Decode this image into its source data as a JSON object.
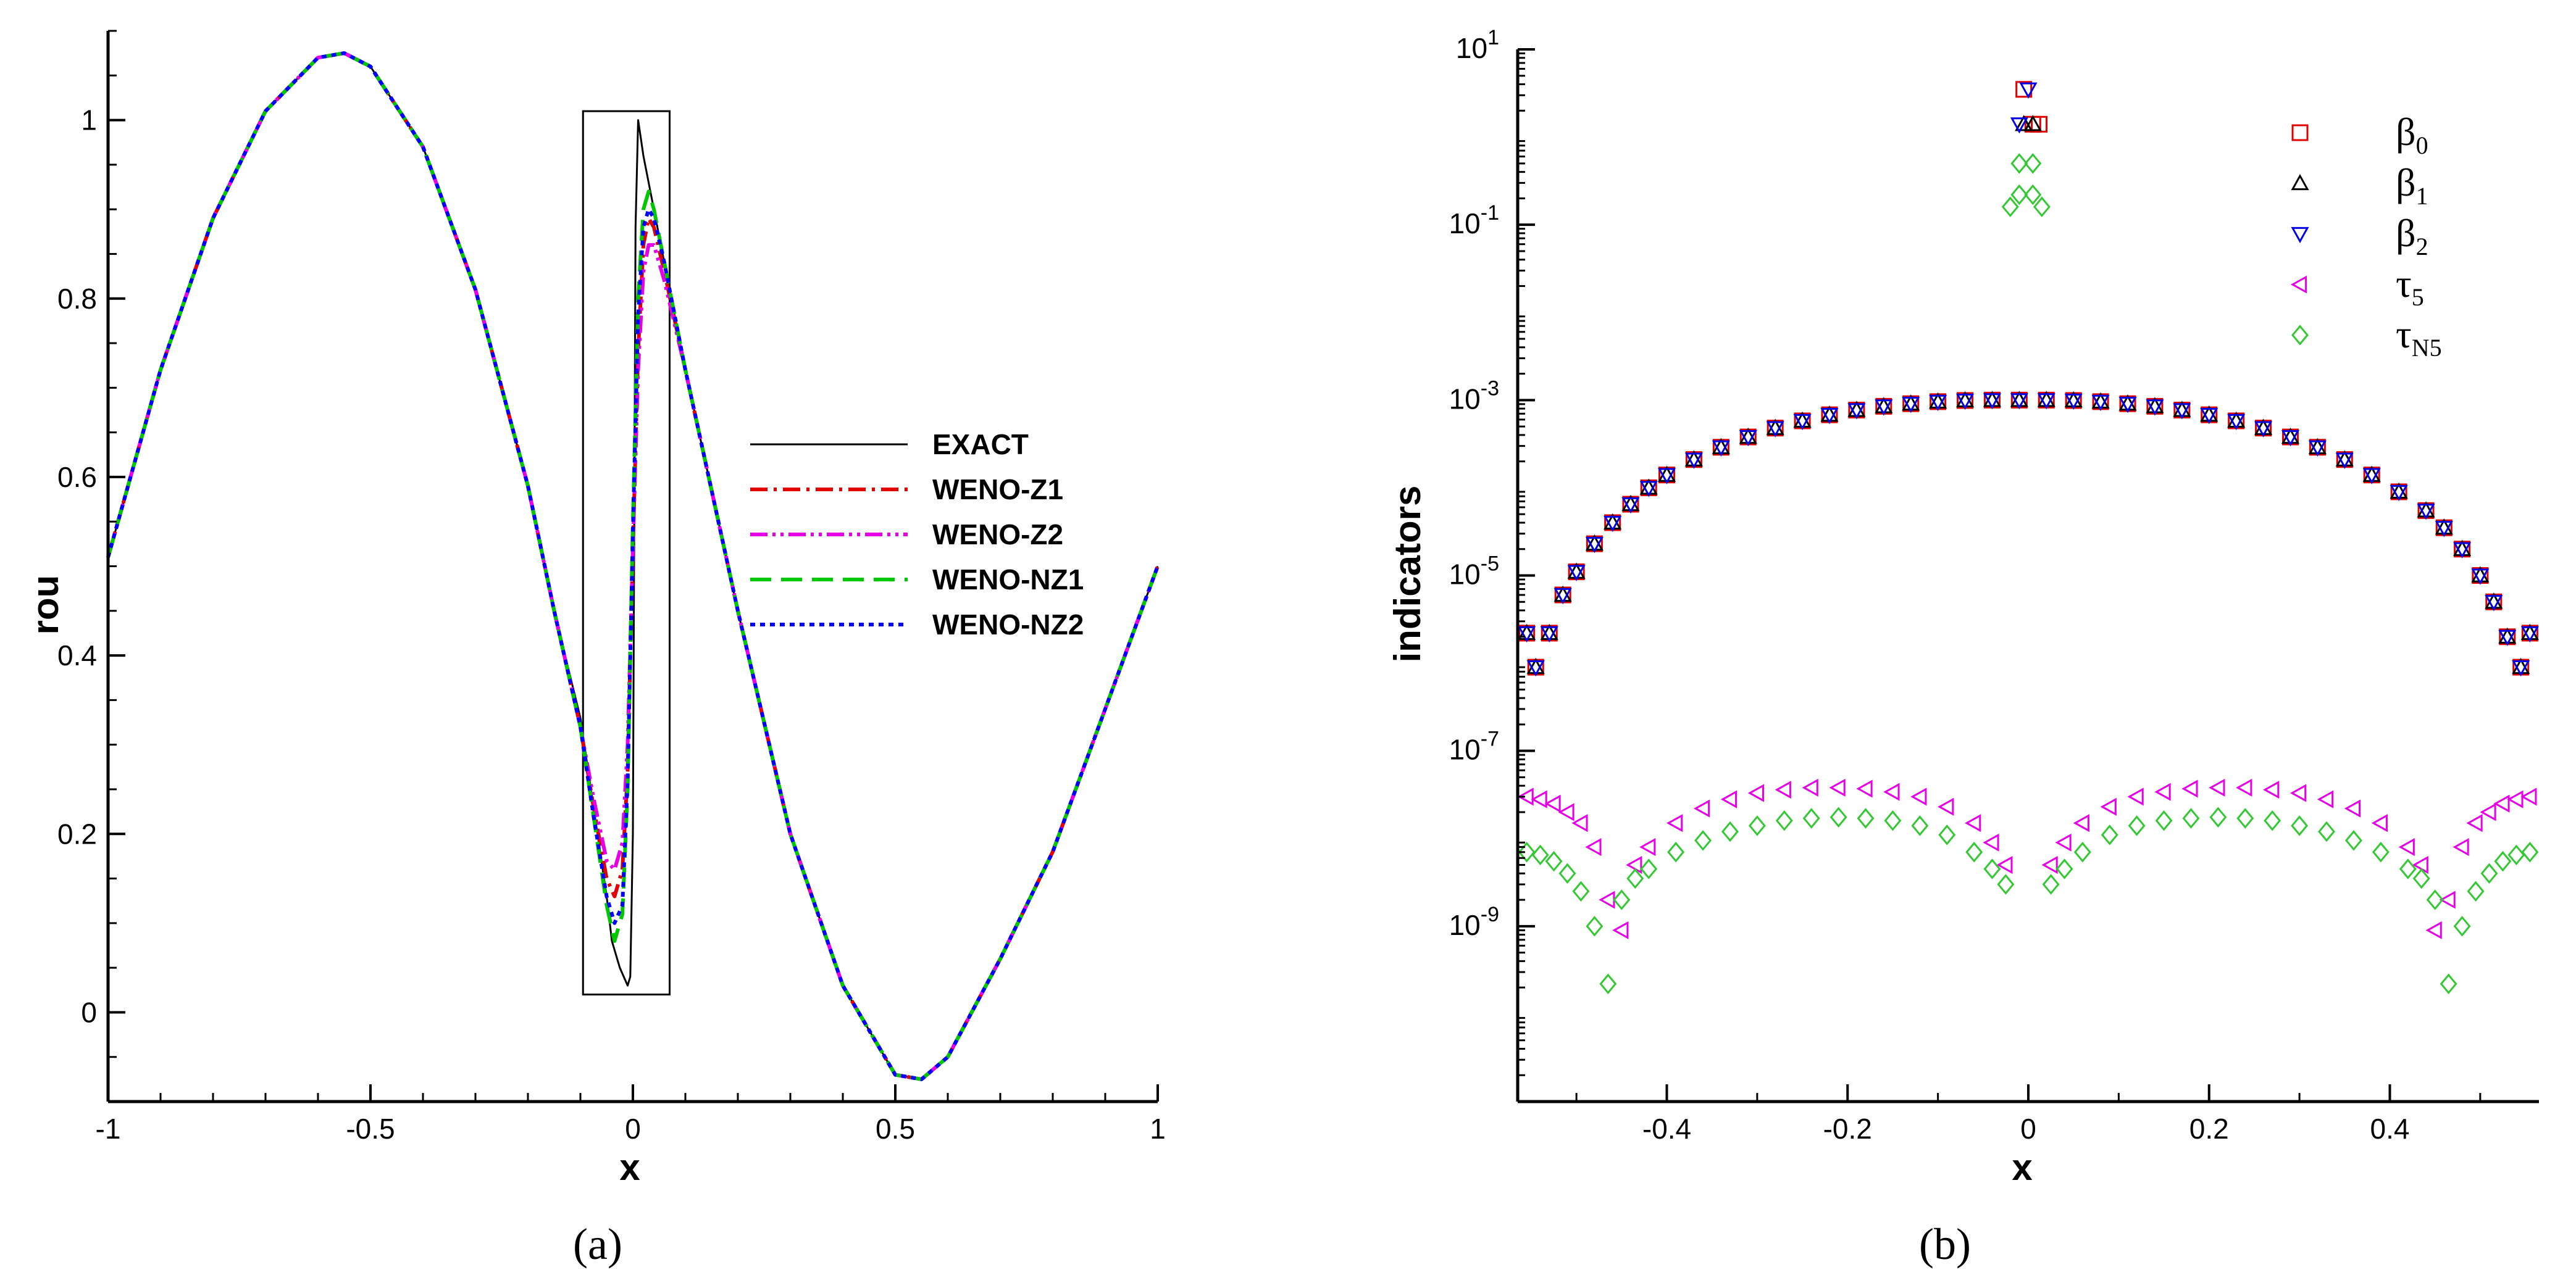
{
  "chart_data": [
    {
      "id": "a",
      "type": "line",
      "panel_label": "(a)",
      "xlabel": "x",
      "ylabel": "rou",
      "xlim": [
        -1,
        1
      ],
      "ylim": [
        -0.1,
        1.1
      ],
      "xticks": [
        -1,
        -0.5,
        0,
        0.5,
        1
      ],
      "xtick_labels": [
        "-1",
        "-0.5",
        "0",
        "0.5",
        "1"
      ],
      "yticks": [
        0,
        0.2,
        0.4,
        0.6,
        0.8,
        1
      ],
      "ytick_labels": [
        "0",
        "0.2",
        "0.4",
        "0.6",
        "0.8",
        "1"
      ],
      "legend_position": "right",
      "highlight_box": {
        "x_range": [
          -0.095,
          0.07
        ],
        "y_range": [
          0.02,
          1.01
        ]
      },
      "series": [
        {
          "name": "EXACT",
          "color": "#000000",
          "dash": "solid",
          "x": [
            -1,
            -0.9,
            -0.8,
            -0.7,
            -0.6,
            -0.55,
            -0.5,
            -0.4,
            -0.3,
            -0.2,
            -0.15,
            -0.1,
            -0.075,
            -0.05,
            -0.04,
            -0.025,
            -0.01,
            -0.005,
            0.0,
            0.005,
            0.01,
            0.015,
            0.02,
            0.04,
            0.06,
            0.1,
            0.2,
            0.3,
            0.4,
            0.5,
            0.55,
            0.6,
            0.7,
            0.8,
            0.9,
            1.0
          ],
          "y": [
            0.51,
            0.72,
            0.89,
            1.01,
            1.07,
            1.075,
            1.06,
            0.97,
            0.81,
            0.59,
            0.45,
            0.33,
            0.23,
            0.13,
            0.08,
            0.05,
            0.03,
            0.04,
            0.2,
            0.88,
            1.0,
            0.98,
            0.96,
            0.9,
            0.84,
            0.72,
            0.45,
            0.2,
            0.03,
            -0.07,
            -0.075,
            -0.05,
            0.06,
            0.18,
            0.34,
            0.5
          ]
        },
        {
          "name": "WENO-Z1",
          "color": "#e30000",
          "dash": "dashdot",
          "x": [
            -1,
            -0.9,
            -0.8,
            -0.7,
            -0.6,
            -0.55,
            -0.5,
            -0.4,
            -0.3,
            -0.2,
            -0.15,
            -0.1,
            -0.075,
            -0.05,
            -0.035,
            -0.02,
            -0.01,
            0.0,
            0.01,
            0.02,
            0.03,
            0.04,
            0.06,
            0.1,
            0.2,
            0.3,
            0.4,
            0.5,
            0.55,
            0.6,
            0.7,
            0.8,
            0.9,
            1.0
          ],
          "y": [
            0.51,
            0.72,
            0.89,
            1.01,
            1.07,
            1.075,
            1.06,
            0.97,
            0.81,
            0.59,
            0.45,
            0.32,
            0.23,
            0.15,
            0.13,
            0.16,
            0.27,
            0.52,
            0.74,
            0.86,
            0.89,
            0.88,
            0.83,
            0.72,
            0.45,
            0.2,
            0.03,
            -0.07,
            -0.075,
            -0.05,
            0.06,
            0.18,
            0.34,
            0.5
          ]
        },
        {
          "name": "WENO-Z2",
          "color": "#e600e6",
          "dash": "dashdotdot",
          "x": [
            -1,
            -0.9,
            -0.8,
            -0.7,
            -0.6,
            -0.55,
            -0.5,
            -0.4,
            -0.3,
            -0.2,
            -0.15,
            -0.1,
            -0.075,
            -0.05,
            -0.035,
            -0.02,
            -0.01,
            0.0,
            0.01,
            0.02,
            0.03,
            0.04,
            0.06,
            0.1,
            0.2,
            0.3,
            0.4,
            0.5,
            0.55,
            0.6,
            0.7,
            0.8,
            0.9,
            1.0
          ],
          "y": [
            0.51,
            0.72,
            0.89,
            1.01,
            1.07,
            1.075,
            1.06,
            0.97,
            0.81,
            0.59,
            0.45,
            0.32,
            0.24,
            0.17,
            0.16,
            0.19,
            0.3,
            0.52,
            0.72,
            0.83,
            0.86,
            0.86,
            0.82,
            0.72,
            0.45,
            0.2,
            0.03,
            -0.07,
            -0.075,
            -0.05,
            0.06,
            0.18,
            0.34,
            0.5
          ]
        },
        {
          "name": "WENO-NZ1",
          "color": "#00c800",
          "dash": "longdash",
          "x": [
            -1,
            -0.9,
            -0.8,
            -0.7,
            -0.6,
            -0.55,
            -0.5,
            -0.4,
            -0.3,
            -0.2,
            -0.15,
            -0.1,
            -0.075,
            -0.05,
            -0.035,
            -0.02,
            -0.01,
            0.0,
            0.01,
            0.02,
            0.03,
            0.04,
            0.06,
            0.1,
            0.2,
            0.3,
            0.4,
            0.5,
            0.55,
            0.6,
            0.7,
            0.8,
            0.9,
            1.0
          ],
          "y": [
            0.51,
            0.72,
            0.89,
            1.01,
            1.07,
            1.075,
            1.06,
            0.97,
            0.81,
            0.59,
            0.45,
            0.32,
            0.22,
            0.12,
            0.08,
            0.11,
            0.25,
            0.55,
            0.8,
            0.9,
            0.92,
            0.9,
            0.84,
            0.72,
            0.45,
            0.2,
            0.03,
            -0.07,
            -0.075,
            -0.05,
            0.06,
            0.18,
            0.34,
            0.5
          ]
        },
        {
          "name": "WENO-NZ2",
          "color": "#0000ff",
          "dash": "dot",
          "x": [
            -1,
            -0.9,
            -0.8,
            -0.7,
            -0.6,
            -0.55,
            -0.5,
            -0.4,
            -0.3,
            -0.2,
            -0.15,
            -0.1,
            -0.075,
            -0.05,
            -0.035,
            -0.02,
            -0.01,
            0.0,
            0.01,
            0.02,
            0.03,
            0.04,
            0.06,
            0.1,
            0.2,
            0.3,
            0.4,
            0.5,
            0.55,
            0.6,
            0.7,
            0.8,
            0.9,
            1.0
          ],
          "y": [
            0.51,
            0.72,
            0.89,
            1.01,
            1.07,
            1.075,
            1.06,
            0.97,
            0.81,
            0.59,
            0.45,
            0.32,
            0.22,
            0.13,
            0.1,
            0.12,
            0.26,
            0.54,
            0.78,
            0.88,
            0.9,
            0.89,
            0.84,
            0.72,
            0.45,
            0.2,
            0.03,
            -0.07,
            -0.075,
            -0.05,
            0.06,
            0.18,
            0.34,
            0.5
          ]
        }
      ]
    },
    {
      "id": "b",
      "type": "scatter",
      "panel_label": "(b)",
      "xlabel": "x",
      "ylabel": "indicators",
      "yscale": "log",
      "xlim": [
        -0.565,
        0.565
      ],
      "ylim_exponent": [
        -11,
        1
      ],
      "xticks": [
        -0.4,
        -0.2,
        0,
        0.2,
        0.4
      ],
      "xtick_labels": [
        "-0.4",
        "-0.2",
        "0",
        "0.2",
        "0.4"
      ],
      "ytick_exponents": [
        -9,
        -7,
        -5,
        -3,
        -1,
        1
      ],
      "ytick_base": "10",
      "ytick_exponent_labels": [
        "-9",
        "-7",
        "-5",
        "-3",
        "-1",
        "1"
      ],
      "legend_position": "top-right",
      "series": [
        {
          "name": "β",
          "sub": "0",
          "marker": "square",
          "color": "#e00000",
          "x": [
            -0.555,
            -0.545,
            -0.53,
            -0.515,
            -0.5,
            -0.48,
            -0.46,
            -0.44,
            -0.42,
            -0.4,
            -0.37,
            -0.34,
            -0.31,
            -0.28,
            -0.25,
            -0.22,
            -0.19,
            -0.16,
            -0.13,
            -0.1,
            -0.07,
            -0.04,
            -0.01,
            0.02,
            0.05,
            0.08,
            0.11,
            0.14,
            0.17,
            0.2,
            0.23,
            0.26,
            0.29,
            0.32,
            0.35,
            0.38,
            0.41,
            0.44,
            0.46,
            0.48,
            0.5,
            0.515,
            0.53,
            0.545,
            0.555,
            -0.005,
            0.005,
            0.012
          ],
          "y": [
            2.2e-06,
            9e-07,
            2.2e-06,
            6e-06,
            1.1e-05,
            2.3e-05,
            4e-05,
            6.5e-05,
            0.0001,
            0.00014,
            0.00021,
            0.00029,
            0.00038,
            0.00048,
            0.00058,
            0.00068,
            0.00077,
            0.00085,
            0.00091,
            0.00096,
            0.00099,
            0.001,
            0.001,
            0.001,
            0.00099,
            0.00096,
            0.00091,
            0.00085,
            0.00077,
            0.00068,
            0.00058,
            0.00048,
            0.00038,
            0.00029,
            0.00021,
            0.00014,
            9e-05,
            5.5e-05,
            3.5e-05,
            2e-05,
            1e-05,
            5e-06,
            2e-06,
            9e-07,
            2.2e-06,
            3.5,
            1.4,
            1.4
          ]
        },
        {
          "name": "β",
          "sub": "1",
          "marker": "triangle-up",
          "color": "#000000",
          "x": [
            -0.555,
            -0.545,
            -0.53,
            -0.515,
            -0.5,
            -0.48,
            -0.46,
            -0.44,
            -0.42,
            -0.4,
            -0.37,
            -0.34,
            -0.31,
            -0.28,
            -0.25,
            -0.22,
            -0.19,
            -0.16,
            -0.13,
            -0.1,
            -0.07,
            -0.04,
            -0.01,
            0.02,
            0.05,
            0.08,
            0.11,
            0.14,
            0.17,
            0.2,
            0.23,
            0.26,
            0.29,
            0.32,
            0.35,
            0.38,
            0.41,
            0.44,
            0.46,
            0.48,
            0.5,
            0.515,
            0.53,
            0.545,
            0.555,
            -0.005,
            0.005
          ],
          "y": [
            2.2e-06,
            9e-07,
            2.2e-06,
            6e-06,
            1.1e-05,
            2.3e-05,
            4e-05,
            6.5e-05,
            0.0001,
            0.00014,
            0.00021,
            0.00029,
            0.00038,
            0.00048,
            0.00058,
            0.00068,
            0.00077,
            0.00085,
            0.00091,
            0.00096,
            0.00099,
            0.001,
            0.001,
            0.001,
            0.00099,
            0.00096,
            0.00091,
            0.00085,
            0.00077,
            0.00068,
            0.00058,
            0.00048,
            0.00038,
            0.00029,
            0.00021,
            0.00014,
            9e-05,
            5.5e-05,
            3.5e-05,
            2e-05,
            1e-05,
            5e-06,
            2e-06,
            9e-07,
            2.2e-06,
            1.4,
            1.4
          ]
        },
        {
          "name": "β",
          "sub": "2",
          "marker": "triangle-down",
          "color": "#0000e6",
          "x": [
            -0.555,
            -0.545,
            -0.53,
            -0.515,
            -0.5,
            -0.48,
            -0.46,
            -0.44,
            -0.42,
            -0.4,
            -0.37,
            -0.34,
            -0.31,
            -0.28,
            -0.25,
            -0.22,
            -0.19,
            -0.16,
            -0.13,
            -0.1,
            -0.07,
            -0.04,
            -0.01,
            0.02,
            0.05,
            0.08,
            0.11,
            0.14,
            0.17,
            0.2,
            0.23,
            0.26,
            0.29,
            0.32,
            0.35,
            0.38,
            0.41,
            0.44,
            0.46,
            0.48,
            0.5,
            0.515,
            0.53,
            0.545,
            0.555,
            -0.01,
            0.0
          ],
          "y": [
            2.2e-06,
            9e-07,
            2.2e-06,
            6e-06,
            1.1e-05,
            2.3e-05,
            4e-05,
            6.5e-05,
            0.0001,
            0.00014,
            0.00021,
            0.00029,
            0.00038,
            0.00048,
            0.00058,
            0.00068,
            0.00077,
            0.00085,
            0.00091,
            0.00096,
            0.00099,
            0.001,
            0.001,
            0.001,
            0.00099,
            0.00096,
            0.00091,
            0.00085,
            0.00077,
            0.00068,
            0.00058,
            0.00048,
            0.00038,
            0.00029,
            0.00021,
            0.00014,
            9e-05,
            5.5e-05,
            3.5e-05,
            2e-05,
            1e-05,
            5e-06,
            2e-06,
            9e-07,
            2.2e-06,
            1.4,
            3.5
          ]
        },
        {
          "name": "τ",
          "sub": "5",
          "marker": "triangle-left",
          "color": "#e600e6",
          "x": [
            -0.555,
            -0.54,
            -0.525,
            -0.51,
            -0.495,
            -0.48,
            -0.465,
            -0.45,
            -0.435,
            -0.42,
            -0.39,
            -0.36,
            -0.33,
            -0.3,
            -0.27,
            -0.24,
            -0.21,
            -0.18,
            -0.15,
            -0.12,
            -0.09,
            -0.06,
            -0.04,
            -0.025,
            0.025,
            0.04,
            0.06,
            0.09,
            0.12,
            0.15,
            0.18,
            0.21,
            0.24,
            0.27,
            0.3,
            0.33,
            0.36,
            0.39,
            0.42,
            0.435,
            0.45,
            0.465,
            0.48,
            0.495,
            0.51,
            0.525,
            0.54,
            0.555
          ],
          "y": [
            3e-08,
            2.8e-08,
            2.5e-08,
            2e-08,
            1.5e-08,
            8e-09,
            2e-09,
            9e-10,
            5e-09,
            8e-09,
            1.5e-08,
            2.2e-08,
            2.8e-08,
            3.3e-08,
            3.6e-08,
            3.8e-08,
            3.8e-08,
            3.7e-08,
            3.4e-08,
            3e-08,
            2.3e-08,
            1.5e-08,
            9e-09,
            5e-09,
            5e-09,
            9e-09,
            1.5e-08,
            2.3e-08,
            3e-08,
            3.4e-08,
            3.7e-08,
            3.8e-08,
            3.8e-08,
            3.6e-08,
            3.3e-08,
            2.8e-08,
            2.2e-08,
            1.5e-08,
            8e-09,
            5e-09,
            9e-10,
            2e-09,
            8e-09,
            1.5e-08,
            2e-08,
            2.5e-08,
            2.8e-08,
            3e-08
          ]
        },
        {
          "name": "τ",
          "sub": "N5",
          "marker": "diamond",
          "color": "#32c832",
          "x": [
            -0.555,
            -0.54,
            -0.525,
            -0.51,
            -0.495,
            -0.48,
            -0.465,
            -0.45,
            -0.435,
            -0.42,
            -0.39,
            -0.36,
            -0.33,
            -0.3,
            -0.27,
            -0.24,
            -0.21,
            -0.18,
            -0.15,
            -0.12,
            -0.09,
            -0.06,
            -0.04,
            -0.025,
            0.025,
            0.04,
            0.06,
            0.09,
            0.12,
            0.15,
            0.18,
            0.21,
            0.24,
            0.27,
            0.3,
            0.33,
            0.36,
            0.39,
            0.42,
            0.435,
            0.45,
            0.465,
            0.48,
            0.495,
            0.51,
            0.525,
            0.54,
            0.555,
            -0.01,
            0.005,
            -0.01,
            0.005,
            -0.02,
            0.015
          ],
          "y": [
            7e-09,
            6.5e-09,
            5.5e-09,
            4e-09,
            2.5e-09,
            1e-09,
            2.2e-10,
            2e-09,
            3.5e-09,
            4.5e-09,
            7e-09,
            9.5e-09,
            1.2e-08,
            1.4e-08,
            1.6e-08,
            1.7e-08,
            1.75e-08,
            1.7e-08,
            1.6e-08,
            1.4e-08,
            1.1e-08,
            7e-09,
            4.5e-09,
            3e-09,
            3e-09,
            4.5e-09,
            7e-09,
            1.1e-08,
            1.4e-08,
            1.6e-08,
            1.7e-08,
            1.75e-08,
            1.7e-08,
            1.6e-08,
            1.4e-08,
            1.2e-08,
            9.5e-09,
            7e-09,
            4.5e-09,
            3.5e-09,
            2e-09,
            2.2e-10,
            1e-09,
            2.5e-09,
            4e-09,
            5.5e-09,
            6.5e-09,
            7e-09,
            0.5,
            0.5,
            0.22,
            0.22,
            0.16,
            0.16
          ]
        }
      ]
    }
  ]
}
